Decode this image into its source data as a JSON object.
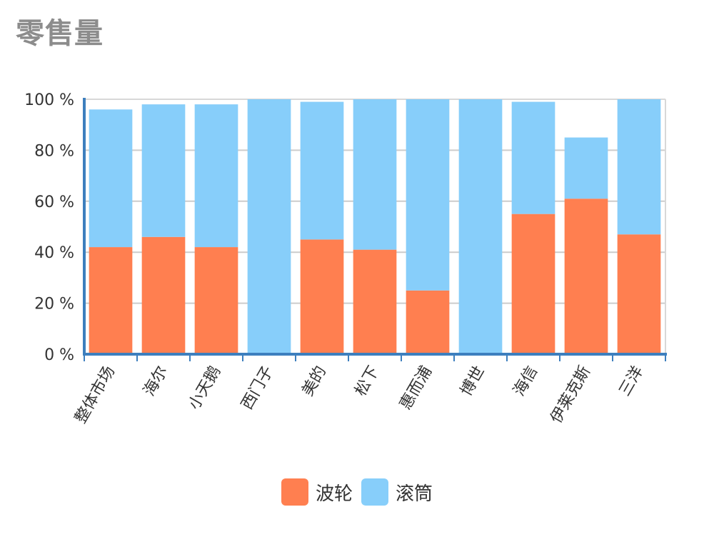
{
  "title": "零售量",
  "colors": {
    "series1": "#FF7F50",
    "series2": "#87CEFA",
    "axis": "#3D7FBE",
    "grid": "#CCCCCC",
    "frame": "#D8D8D8"
  },
  "chart_data": {
    "type": "bar",
    "stacked": true,
    "title": "零售量",
    "xlabel": "",
    "ylabel": "",
    "ylim": [
      0,
      100
    ],
    "y_ticks": [
      "0 %",
      "20 %",
      "40 %",
      "60 %",
      "80 %",
      "100 %"
    ],
    "categories": [
      "整体市场",
      "海尔",
      "小天鹅",
      "西门子",
      "美的",
      "松下",
      "惠而浦",
      "博世",
      "海信",
      "伊莱克斯",
      "三洋"
    ],
    "series": [
      {
        "name": "波轮",
        "values": [
          42,
          46,
          42,
          0,
          45,
          41,
          25,
          0,
          55,
          61,
          47
        ]
      },
      {
        "name": "滚筒",
        "values": [
          54,
          52,
          56,
          100,
          54,
          59,
          75,
          100,
          44,
          24,
          53
        ]
      }
    ],
    "legend_position": "bottom",
    "grid": true
  }
}
